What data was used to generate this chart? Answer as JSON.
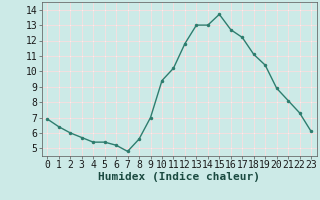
{
  "x": [
    0,
    1,
    2,
    3,
    4,
    5,
    6,
    7,
    8,
    9,
    10,
    11,
    12,
    13,
    14,
    15,
    16,
    17,
    18,
    19,
    20,
    21,
    22,
    23
  ],
  "y": [
    6.9,
    6.4,
    6.0,
    5.7,
    5.4,
    5.4,
    5.2,
    4.8,
    5.6,
    7.0,
    9.4,
    10.2,
    11.8,
    13.0,
    13.0,
    13.7,
    12.7,
    12.2,
    11.1,
    10.4,
    8.9,
    8.1,
    7.3,
    6.1
  ],
  "line_color": "#2e7d6e",
  "marker": ".",
  "marker_size": 3,
  "bg_color": "#cceae7",
  "xlabel": "Humidex (Indice chaleur)",
  "xlim": [
    -0.5,
    23.5
  ],
  "ylim": [
    4.5,
    14.5
  ],
  "yticks": [
    5,
    6,
    7,
    8,
    9,
    10,
    11,
    12,
    13,
    14
  ],
  "xticks": [
    0,
    1,
    2,
    3,
    4,
    5,
    6,
    7,
    8,
    9,
    10,
    11,
    12,
    13,
    14,
    15,
    16,
    17,
    18,
    19,
    20,
    21,
    22,
    23
  ],
  "grid_pink": "#e8b0b0",
  "grid_white": "#ffffff",
  "tick_fontsize": 7,
  "xlabel_fontsize": 8
}
